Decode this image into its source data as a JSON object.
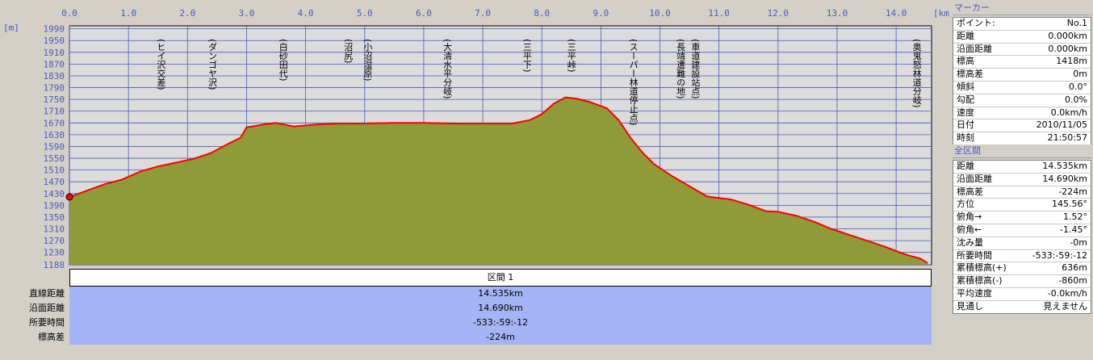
{
  "chart_data": {
    "type": "area",
    "xunit": "[km]",
    "yunit": "[m]",
    "xlim": [
      0,
      14.6
    ],
    "ylim": [
      1188,
      2000
    ],
    "xticks": [
      "0.0",
      "1.0",
      "2.0",
      "3.0",
      "4.0",
      "5.0",
      "6.0",
      "7.0",
      "8.0",
      "9.0",
      "10.0",
      "11.0",
      "12.0",
      "13.0",
      "14.0"
    ],
    "yticks": [
      "1990",
      "1950",
      "1910",
      "1870",
      "1830",
      "1790",
      "1750",
      "1710",
      "1670",
      "1630",
      "1590",
      "1550",
      "1510",
      "1470",
      "1430",
      "1390",
      "1350",
      "1310",
      "1270",
      "1230",
      "1188"
    ],
    "profile": [
      [
        0.0,
        1418
      ],
      [
        0.3,
        1440
      ],
      [
        0.6,
        1462
      ],
      [
        0.9,
        1478
      ],
      [
        1.2,
        1505
      ],
      [
        1.5,
        1522
      ],
      [
        1.8,
        1535
      ],
      [
        2.1,
        1548
      ],
      [
        2.4,
        1568
      ],
      [
        2.7,
        1600
      ],
      [
        2.9,
        1620
      ],
      [
        3.0,
        1655
      ],
      [
        3.3,
        1665
      ],
      [
        3.5,
        1670
      ],
      [
        3.8,
        1658
      ],
      [
        4.2,
        1665
      ],
      [
        4.6,
        1668
      ],
      [
        5.0,
        1668
      ],
      [
        5.5,
        1670
      ],
      [
        6.0,
        1670
      ],
      [
        6.5,
        1668
      ],
      [
        7.0,
        1668
      ],
      [
        7.5,
        1668
      ],
      [
        7.8,
        1680
      ],
      [
        8.0,
        1700
      ],
      [
        8.2,
        1735
      ],
      [
        8.4,
        1757
      ],
      [
        8.6,
        1752
      ],
      [
        8.8,
        1742
      ],
      [
        9.1,
        1720
      ],
      [
        9.3,
        1680
      ],
      [
        9.5,
        1620
      ],
      [
        9.7,
        1570
      ],
      [
        9.9,
        1530
      ],
      [
        10.2,
        1490
      ],
      [
        10.5,
        1455
      ],
      [
        10.8,
        1420
      ],
      [
        11.0,
        1415
      ],
      [
        11.2,
        1410
      ],
      [
        11.5,
        1392
      ],
      [
        11.8,
        1370
      ],
      [
        12.0,
        1368
      ],
      [
        12.3,
        1355
      ],
      [
        12.6,
        1335
      ],
      [
        12.9,
        1310
      ],
      [
        13.2,
        1290
      ],
      [
        13.5,
        1270
      ],
      [
        13.8,
        1250
      ],
      [
        14.0,
        1235
      ],
      [
        14.2,
        1220
      ],
      [
        14.4,
        1210
      ],
      [
        14.535,
        1194
      ]
    ],
    "annotations": [
      {
        "x": 1.55,
        "label": "(ヒイ沢交差)"
      },
      {
        "x": 2.42,
        "label": "(ダンゴヤ沢)"
      },
      {
        "x": 3.62,
        "label": "(白砂田代)"
      },
      {
        "x": 4.72,
        "label": "(沼尻)"
      },
      {
        "x": 5.05,
        "label": "(小沼湿原)"
      },
      {
        "x": 6.4,
        "label": "(大清水平分岐)"
      },
      {
        "x": 7.75,
        "label": "(三平下)"
      },
      {
        "x": 8.5,
        "label": "(三平峠)"
      },
      {
        "x": 9.55,
        "label": "(スーパー林道停止点)"
      },
      {
        "x": 10.35,
        "label": "(長靖遭難の地)"
      },
      {
        "x": 10.6,
        "label": "(車道建設站点)"
      },
      {
        "x": 14.35,
        "label": "(奥鬼怒林道分岐)"
      }
    ],
    "line_color": "#ff0000",
    "fill_color": "#8f9a38",
    "bg_color": "#dcdcdc"
  },
  "section": {
    "header": "区間 1",
    "rows": [
      {
        "label": "直線距離",
        "value": "14.535km"
      },
      {
        "label": "沿面距離",
        "value": "14.690km"
      },
      {
        "label": "所要時間",
        "value": "-533:-59:-12"
      },
      {
        "label": "標高差",
        "value": "-224m"
      }
    ]
  },
  "marker_panel": {
    "title": "マーカー",
    "rows": [
      {
        "k": "ポイント:",
        "v": "No.1"
      },
      {
        "k": "距離",
        "v": "0.000km"
      },
      {
        "k": "沿面距離",
        "v": "0.000km"
      },
      {
        "k": "標高",
        "v": "1418m"
      },
      {
        "k": "標高差",
        "v": "0m"
      },
      {
        "k": "傾斜",
        "v": "0.0°"
      },
      {
        "k": "勾配",
        "v": "0.0%"
      },
      {
        "k": "速度",
        "v": "0.0km/h"
      },
      {
        "k": "日付",
        "v": "2010/11/05"
      },
      {
        "k": "時刻",
        "v": "21:50:57"
      }
    ]
  },
  "total_panel": {
    "title": "全区間",
    "rows": [
      {
        "k": "距離",
        "v": "14.535km"
      },
      {
        "k": "沿面距離",
        "v": "14.690km"
      },
      {
        "k": "標高差",
        "v": "-224m"
      },
      {
        "k": "方位",
        "v": "145.56°"
      },
      {
        "k": "俯角→",
        "v": "1.52°"
      },
      {
        "k": "俯角←",
        "v": "-1.45°"
      },
      {
        "k": "沈み量",
        "v": "-0m"
      },
      {
        "k": "所要時間",
        "v": "-533:-59:-12"
      },
      {
        "k": "累積標高(+)",
        "v": "636m"
      },
      {
        "k": "累積標高(-)",
        "v": "-860m"
      },
      {
        "k": "平均速度",
        "v": "-0.0km/h"
      },
      {
        "k": "見通し",
        "v": "見えません"
      }
    ]
  }
}
